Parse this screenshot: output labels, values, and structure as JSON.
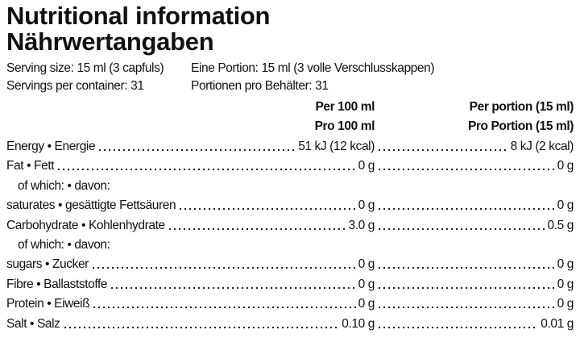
{
  "header": {
    "title": [
      "Nutritional information",
      "Nährwertangaben"
    ]
  },
  "serving": [
    [
      "Serving size: 15 ml (3 capfuls)",
      "Eine Portion: 15 ml (3 volle Verschlusskappen)"
    ],
    [
      "Servings per container: 31",
      "Portionen pro Behälter: 31"
    ]
  ],
  "table": {
    "columns": [
      [
        "Per 100 ml",
        "Pro 100 ml"
      ],
      [
        "Per portion (15 ml)",
        "Pro Portion (15 ml)"
      ]
    ],
    "rows": [
      {
        "label": "Energy • Energie",
        "per100": "51 kJ (12 kcal)",
        "portion": "8 kJ (2 kcal)"
      },
      {
        "label": "Fat • Fett",
        "per100": "0 g",
        "portion": "0 g"
      },
      {
        "label": "of which: • davon:"
      },
      {
        "label": "saturates • gesättigte Fettsäuren",
        "per100": "0 g",
        "portion": "0 g"
      },
      {
        "label": "Carbohydrate • Kohlenhydrate",
        "per100": "3.0 g",
        "portion": "0.5 g"
      },
      {
        "label": "of which: • davon:"
      },
      {
        "label": "sugars • Zucker",
        "per100": "0 g",
        "portion": "0 g"
      },
      {
        "label": "Fibre • Ballaststoffe",
        "per100": "0 g",
        "portion": "0 g"
      },
      {
        "label": "Protein • Eiweiß",
        "per100": "0 g",
        "portion": "0 g"
      },
      {
        "label": "Salt • Salz",
        "per100": "0.10 g",
        "portion": "0.01 g"
      }
    ]
  }
}
